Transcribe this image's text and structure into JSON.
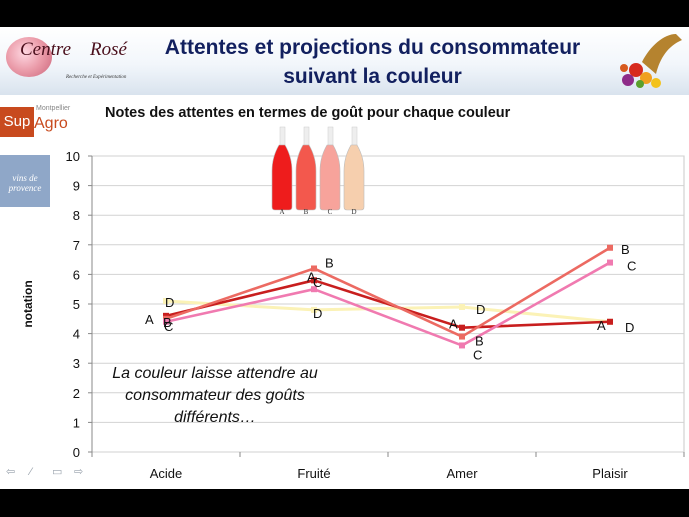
{
  "header": {
    "logo_centre": [
      "Centre",
      "du",
      "Rosé",
      "Recherche et Expérimentation"
    ],
    "title_lines": [
      "Attentes et projections du consommateur",
      "suivant la couleur"
    ]
  },
  "side_logos": {
    "supagro": {
      "montpellier": "Montpellier",
      "sup": "Sup",
      "agro": "Agro"
    },
    "provence": {
      "line1": "vins de",
      "line2": "provence"
    }
  },
  "chart_data": {
    "type": "line",
    "title": "Notes des attentes en termes de goût pour chaque couleur",
    "ylabel": "notation",
    "xlabel": "",
    "categories": [
      "Acide",
      "Fruité",
      "Amer",
      "Plaisir"
    ],
    "ylim": [
      0,
      10
    ],
    "yticks": [
      "0",
      "1",
      "2",
      "3",
      "4",
      "5",
      "6",
      "7",
      "8",
      "9",
      "10"
    ],
    "grid": true,
    "series": [
      {
        "name": "A",
        "color": "#c81e1e",
        "values": [
          4.6,
          5.8,
          4.2,
          4.4
        ]
      },
      {
        "name": "B",
        "color": "#ec6a62",
        "values": [
          4.5,
          6.2,
          3.9,
          6.9
        ]
      },
      {
        "name": "C",
        "color": "#f07ab0",
        "values": [
          4.4,
          5.5,
          3.6,
          6.4
        ]
      },
      {
        "name": "D",
        "color": "#fbf2b6",
        "values": [
          5.1,
          4.8,
          4.9,
          4.4
        ]
      }
    ],
    "bottle_labels": [
      "A",
      "B",
      "C",
      "D"
    ],
    "bottle_colors": [
      "#ee1c1c",
      "#f3584d",
      "#f7a39b",
      "#f6cfae"
    ]
  },
  "annotation": [
    "La couleur laisse attendre au",
    "consommateur des goûts",
    "différents…"
  ],
  "nav": [
    "prev-arrow-icon",
    "pen-icon",
    "menu-icon",
    "next-arrow-icon"
  ]
}
